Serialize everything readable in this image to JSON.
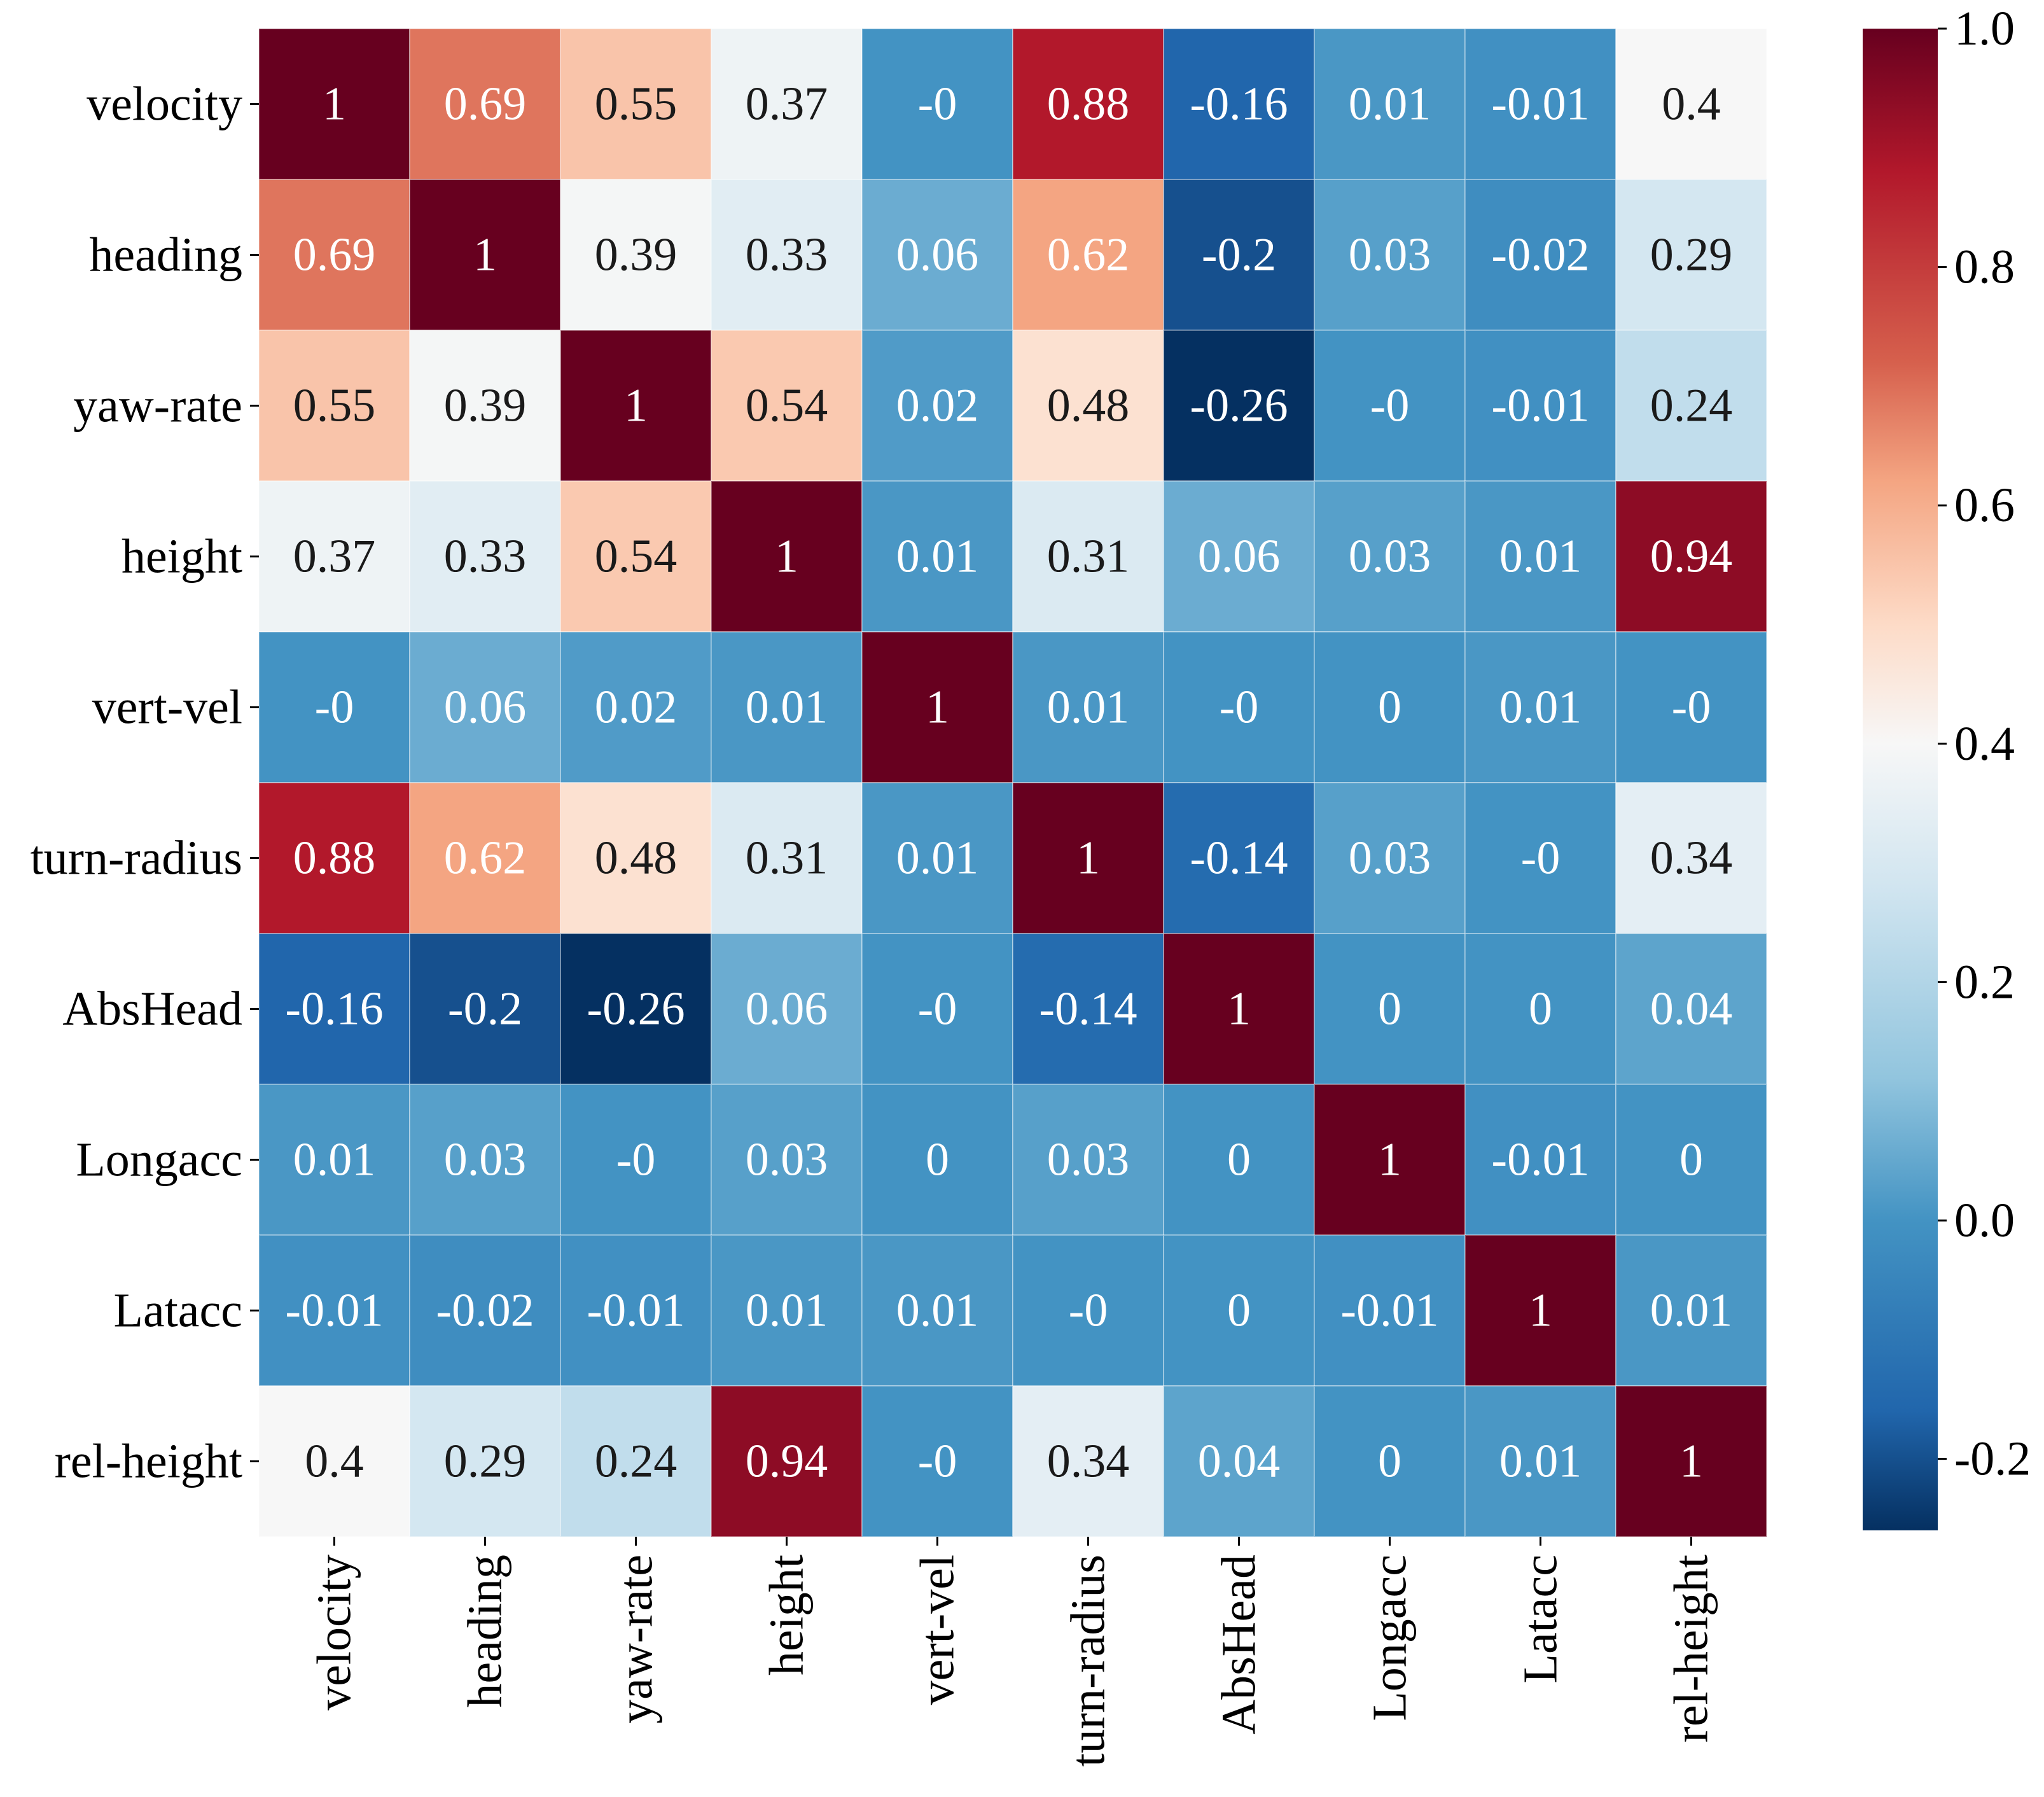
{
  "chart_data": {
    "type": "heatmap",
    "title": "",
    "xlabel": "",
    "ylabel": "",
    "rows": [
      "velocity",
      "heading",
      "yaw-rate",
      "height",
      "vert-vel",
      "turn-radius",
      "AbsHead",
      "Longacc",
      "Latacc",
      "rel-height"
    ],
    "columns": [
      "velocity",
      "heading",
      "yaw-rate",
      "height",
      "vert-vel",
      "turn-radius",
      "AbsHead",
      "Longacc",
      "Latacc",
      "rel-height"
    ],
    "values": [
      [
        1,
        0.69,
        0.55,
        0.37,
        -0.0,
        0.88,
        -0.16,
        0.01,
        -0.01,
        0.4
      ],
      [
        0.69,
        1,
        0.39,
        0.33,
        0.06,
        0.62,
        -0.2,
        0.03,
        -0.02,
        0.29
      ],
      [
        0.55,
        0.39,
        1,
        0.54,
        0.02,
        0.48,
        -0.26,
        -0.0,
        -0.01,
        0.24
      ],
      [
        0.37,
        0.33,
        0.54,
        1,
        0.01,
        0.31,
        0.06,
        0.03,
        0.01,
        0.94
      ],
      [
        -0.0,
        0.06,
        0.02,
        0.01,
        1,
        0.01,
        -0.0,
        0,
        0.01,
        -0.0
      ],
      [
        0.88,
        0.62,
        0.48,
        0.31,
        0.01,
        1,
        -0.14,
        0.03,
        -0.0,
        0.34
      ],
      [
        -0.16,
        -0.2,
        -0.26,
        0.06,
        -0.0,
        -0.14,
        1,
        0,
        0,
        0.04
      ],
      [
        0.01,
        0.03,
        -0.0,
        0.03,
        0,
        0.03,
        0,
        1,
        -0.01,
        0
      ],
      [
        -0.01,
        -0.02,
        -0.01,
        0.01,
        0.01,
        -0.0,
        0,
        -0.01,
        1,
        0.01
      ],
      [
        0.4,
        0.29,
        0.24,
        0.94,
        -0.0,
        0.34,
        0.04,
        0,
        0.01,
        1
      ]
    ],
    "labels": [
      [
        "1",
        "0.69",
        "0.55",
        "0.37",
        "-0",
        "0.88",
        "-0.16",
        "0.01",
        "-0.01",
        "0.4"
      ],
      [
        "0.69",
        "1",
        "0.39",
        "0.33",
        "0.06",
        "0.62",
        "-0.2",
        "0.03",
        "-0.02",
        "0.29"
      ],
      [
        "0.55",
        "0.39",
        "1",
        "0.54",
        "0.02",
        "0.48",
        "-0.26",
        "-0",
        "-0.01",
        "0.24"
      ],
      [
        "0.37",
        "0.33",
        "0.54",
        "1",
        "0.01",
        "0.31",
        "0.06",
        "0.03",
        "0.01",
        "0.94"
      ],
      [
        "-0",
        "0.06",
        "0.02",
        "0.01",
        "1",
        "0.01",
        "-0",
        "0",
        "0.01",
        "-0"
      ],
      [
        "0.88",
        "0.62",
        "0.48",
        "0.31",
        "0.01",
        "1",
        "-0.14",
        "0.03",
        "-0",
        "0.34"
      ],
      [
        "-0.16",
        "-0.2",
        "-0.26",
        "0.06",
        "-0",
        "-0.14",
        "1",
        "0",
        "0",
        "0.04"
      ],
      [
        "0.01",
        "0.03",
        "-0",
        "0.03",
        "0",
        "0.03",
        "0",
        "1",
        "-0.01",
        "0"
      ],
      [
        "-0.01",
        "-0.02",
        "-0.01",
        "0.01",
        "0.01",
        "-0",
        "0",
        "-0.01",
        "1",
        "0.01"
      ],
      [
        "0.4",
        "0.29",
        "0.24",
        "0.94",
        "-0",
        "0.34",
        "0.04",
        "0",
        "0.01",
        "1"
      ]
    ],
    "colormap": "RdBu_r",
    "vmin": -0.26,
    "vmax": 1.0,
    "colorbar": {
      "ticks": [
        1.0,
        0.8,
        0.6,
        0.4,
        0.2,
        0.0,
        -0.2
      ],
      "tick_labels": [
        "1.0",
        "0.8",
        "0.6",
        "0.4",
        "0.2",
        "0.0",
        "-0.2"
      ]
    },
    "grid": false,
    "annotations": true
  },
  "colors": {
    "dark_red": "#67001f",
    "red": "#b2182b",
    "salmon": "#d6604d",
    "peach": "#f4a582",
    "light_peach": "#fddbc7",
    "white": "#f7f7f7",
    "light_blue": "#d1e5f0",
    "sky_blue": "#92c5de",
    "blue": "#4393c3",
    "mid_blue": "#2166ac",
    "navy": "#053061"
  }
}
